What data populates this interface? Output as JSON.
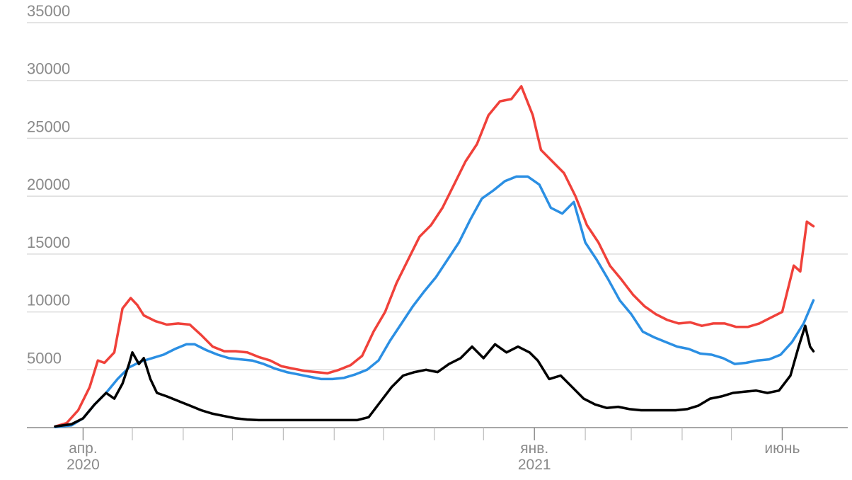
{
  "chart_data": {
    "type": "line",
    "ylim": [
      0,
      35000
    ],
    "y_ticks": [
      {
        "value": 35000,
        "label": "35000"
      },
      {
        "value": 30000,
        "label": "30000"
      },
      {
        "value": 25000,
        "label": "25000"
      },
      {
        "value": 20000,
        "label": "20000"
      },
      {
        "value": 15000,
        "label": "15000"
      },
      {
        "value": 10000,
        "label": "10000"
      },
      {
        "value": 5000,
        "label": "5000"
      }
    ],
    "x_range": [
      "2020-03-15",
      "2021-07-01"
    ],
    "x_labels": [
      {
        "date": "2020-04-01",
        "line1": "апр.",
        "line2": "2020"
      },
      {
        "date": "2021-01-01",
        "line1": "янв.",
        "line2": "2021"
      },
      {
        "date": "2021-06-01",
        "line1": "июнь",
        "line2": ""
      }
    ],
    "x_minor_ticks": [
      "2020-05-01",
      "2020-06-01",
      "2020-07-01",
      "2020-08-01",
      "2020-09-01",
      "2020-10-01",
      "2020-11-01",
      "2020-12-01",
      "2021-02-01",
      "2021-03-01",
      "2021-04-01",
      "2021-05-01"
    ],
    "grid": true,
    "series": [
      {
        "color": "#f0413a",
        "points": [
          [
            "2020-03-15",
            100
          ],
          [
            "2020-03-22",
            400
          ],
          [
            "2020-03-29",
            1500
          ],
          [
            "2020-04-05",
            3500
          ],
          [
            "2020-04-10",
            5800
          ],
          [
            "2020-04-14",
            5600
          ],
          [
            "2020-04-20",
            6500
          ],
          [
            "2020-04-25",
            10300
          ],
          [
            "2020-04-30",
            11200
          ],
          [
            "2020-05-04",
            10600
          ],
          [
            "2020-05-08",
            9700
          ],
          [
            "2020-05-15",
            9200
          ],
          [
            "2020-05-22",
            8900
          ],
          [
            "2020-05-29",
            9000
          ],
          [
            "2020-06-05",
            8900
          ],
          [
            "2020-06-12",
            8000
          ],
          [
            "2020-06-19",
            7000
          ],
          [
            "2020-06-26",
            6600
          ],
          [
            "2020-07-03",
            6600
          ],
          [
            "2020-07-10",
            6500
          ],
          [
            "2020-07-17",
            6100
          ],
          [
            "2020-07-24",
            5800
          ],
          [
            "2020-07-31",
            5300
          ],
          [
            "2020-08-07",
            5100
          ],
          [
            "2020-08-14",
            4900
          ],
          [
            "2020-08-21",
            4800
          ],
          [
            "2020-08-28",
            4700
          ],
          [
            "2020-09-04",
            5000
          ],
          [
            "2020-09-11",
            5400
          ],
          [
            "2020-09-18",
            6200
          ],
          [
            "2020-09-25",
            8300
          ],
          [
            "2020-10-02",
            10000
          ],
          [
            "2020-10-09",
            12500
          ],
          [
            "2020-10-16",
            14500
          ],
          [
            "2020-10-23",
            16500
          ],
          [
            "2020-10-30",
            17500
          ],
          [
            "2020-11-06",
            19000
          ],
          [
            "2020-11-13",
            21000
          ],
          [
            "2020-11-20",
            23000
          ],
          [
            "2020-11-27",
            24500
          ],
          [
            "2020-12-04",
            27000
          ],
          [
            "2020-12-11",
            28200
          ],
          [
            "2020-12-18",
            28400
          ],
          [
            "2020-12-24",
            29500
          ],
          [
            "2020-12-31",
            27000
          ],
          [
            "2021-01-05",
            24000
          ],
          [
            "2021-01-12",
            23000
          ],
          [
            "2021-01-19",
            22000
          ],
          [
            "2021-01-26",
            20000
          ],
          [
            "2021-02-02",
            17500
          ],
          [
            "2021-02-09",
            16000
          ],
          [
            "2021-02-16",
            14000
          ],
          [
            "2021-02-23",
            12800
          ],
          [
            "2021-03-02",
            11500
          ],
          [
            "2021-03-09",
            10500
          ],
          [
            "2021-03-16",
            9800
          ],
          [
            "2021-03-23",
            9300
          ],
          [
            "2021-03-30",
            9000
          ],
          [
            "2021-04-06",
            9100
          ],
          [
            "2021-04-13",
            8800
          ],
          [
            "2021-04-20",
            9000
          ],
          [
            "2021-04-27",
            9000
          ],
          [
            "2021-05-04",
            8700
          ],
          [
            "2021-05-11",
            8700
          ],
          [
            "2021-05-18",
            9000
          ],
          [
            "2021-05-25",
            9500
          ],
          [
            "2021-06-01",
            10000
          ],
          [
            "2021-06-08",
            14000
          ],
          [
            "2021-06-12",
            13500
          ],
          [
            "2021-06-16",
            17800
          ],
          [
            "2021-06-20",
            17400
          ]
        ]
      },
      {
        "color": "#2b8fe3",
        "points": [
          [
            "2020-03-15",
            50
          ],
          [
            "2020-03-25",
            200
          ],
          [
            "2020-04-01",
            800
          ],
          [
            "2020-04-08",
            2000
          ],
          [
            "2020-04-15",
            3000
          ],
          [
            "2020-04-22",
            4200
          ],
          [
            "2020-04-29",
            5200
          ],
          [
            "2020-05-06",
            5700
          ],
          [
            "2020-05-13",
            6000
          ],
          [
            "2020-05-20",
            6300
          ],
          [
            "2020-05-27",
            6800
          ],
          [
            "2020-06-03",
            7200
          ],
          [
            "2020-06-08",
            7200
          ],
          [
            "2020-06-15",
            6700
          ],
          [
            "2020-06-22",
            6300
          ],
          [
            "2020-06-29",
            6000
          ],
          [
            "2020-07-06",
            5900
          ],
          [
            "2020-07-13",
            5800
          ],
          [
            "2020-07-20",
            5500
          ],
          [
            "2020-07-27",
            5100
          ],
          [
            "2020-08-03",
            4800
          ],
          [
            "2020-08-10",
            4600
          ],
          [
            "2020-08-17",
            4400
          ],
          [
            "2020-08-24",
            4200
          ],
          [
            "2020-08-31",
            4200
          ],
          [
            "2020-09-07",
            4300
          ],
          [
            "2020-09-14",
            4600
          ],
          [
            "2020-09-21",
            5000
          ],
          [
            "2020-09-28",
            5800
          ],
          [
            "2020-10-05",
            7500
          ],
          [
            "2020-10-12",
            9000
          ],
          [
            "2020-10-19",
            10500
          ],
          [
            "2020-10-26",
            11800
          ],
          [
            "2020-11-02",
            13000
          ],
          [
            "2020-11-09",
            14500
          ],
          [
            "2020-11-16",
            16000
          ],
          [
            "2020-11-23",
            18000
          ],
          [
            "2020-11-30",
            19800
          ],
          [
            "2020-12-07",
            20500
          ],
          [
            "2020-12-14",
            21300
          ],
          [
            "2020-12-21",
            21700
          ],
          [
            "2020-12-28",
            21700
          ],
          [
            "2021-01-04",
            21000
          ],
          [
            "2021-01-11",
            19000
          ],
          [
            "2021-01-18",
            18500
          ],
          [
            "2021-01-25",
            19500
          ],
          [
            "2021-02-01",
            16000
          ],
          [
            "2021-02-08",
            14500
          ],
          [
            "2021-02-15",
            12800
          ],
          [
            "2021-02-22",
            11000
          ],
          [
            "2021-03-01",
            9800
          ],
          [
            "2021-03-08",
            8300
          ],
          [
            "2021-03-15",
            7800
          ],
          [
            "2021-03-22",
            7400
          ],
          [
            "2021-03-29",
            7000
          ],
          [
            "2021-04-05",
            6800
          ],
          [
            "2021-04-12",
            6400
          ],
          [
            "2021-04-19",
            6300
          ],
          [
            "2021-04-26",
            6000
          ],
          [
            "2021-05-03",
            5500
          ],
          [
            "2021-05-10",
            5600
          ],
          [
            "2021-05-17",
            5800
          ],
          [
            "2021-05-24",
            5900
          ],
          [
            "2021-05-31",
            6300
          ],
          [
            "2021-06-07",
            7400
          ],
          [
            "2021-06-14",
            9000
          ],
          [
            "2021-06-20",
            11000
          ]
        ]
      },
      {
        "color": "#000000",
        "points": [
          [
            "2020-03-15",
            100
          ],
          [
            "2020-03-25",
            300
          ],
          [
            "2020-04-01",
            800
          ],
          [
            "2020-04-08",
            2000
          ],
          [
            "2020-04-15",
            3000
          ],
          [
            "2020-04-20",
            2500
          ],
          [
            "2020-04-25",
            3800
          ],
          [
            "2020-04-29",
            5500
          ],
          [
            "2020-05-01",
            6500
          ],
          [
            "2020-05-05",
            5500
          ],
          [
            "2020-05-08",
            6000
          ],
          [
            "2020-05-12",
            4200
          ],
          [
            "2020-05-16",
            3000
          ],
          [
            "2020-05-22",
            2700
          ],
          [
            "2020-05-29",
            2300
          ],
          [
            "2020-06-05",
            1900
          ],
          [
            "2020-06-12",
            1500
          ],
          [
            "2020-06-19",
            1200
          ],
          [
            "2020-06-26",
            1000
          ],
          [
            "2020-07-03",
            800
          ],
          [
            "2020-07-10",
            700
          ],
          [
            "2020-07-17",
            650
          ],
          [
            "2020-07-24",
            650
          ],
          [
            "2020-08-07",
            650
          ],
          [
            "2020-08-21",
            650
          ],
          [
            "2020-09-04",
            650
          ],
          [
            "2020-09-15",
            650
          ],
          [
            "2020-09-22",
            900
          ],
          [
            "2020-09-29",
            2200
          ],
          [
            "2020-10-06",
            3500
          ],
          [
            "2020-10-13",
            4500
          ],
          [
            "2020-10-20",
            4800
          ],
          [
            "2020-10-27",
            5000
          ],
          [
            "2020-11-03",
            4800
          ],
          [
            "2020-11-10",
            5500
          ],
          [
            "2020-11-17",
            6000
          ],
          [
            "2020-11-24",
            7000
          ],
          [
            "2020-12-01",
            6000
          ],
          [
            "2020-12-08",
            7200
          ],
          [
            "2020-12-15",
            6500
          ],
          [
            "2020-12-22",
            7000
          ],
          [
            "2020-12-29",
            6500
          ],
          [
            "2021-01-03",
            5800
          ],
          [
            "2021-01-10",
            4200
          ],
          [
            "2021-01-17",
            4500
          ],
          [
            "2021-01-24",
            3500
          ],
          [
            "2021-01-31",
            2500
          ],
          [
            "2021-02-07",
            2000
          ],
          [
            "2021-02-14",
            1700
          ],
          [
            "2021-02-21",
            1800
          ],
          [
            "2021-02-28",
            1600
          ],
          [
            "2021-03-07",
            1500
          ],
          [
            "2021-03-14",
            1500
          ],
          [
            "2021-03-21",
            1500
          ],
          [
            "2021-03-28",
            1500
          ],
          [
            "2021-04-04",
            1600
          ],
          [
            "2021-04-11",
            1900
          ],
          [
            "2021-04-18",
            2500
          ],
          [
            "2021-04-25",
            2700
          ],
          [
            "2021-05-02",
            3000
          ],
          [
            "2021-05-09",
            3100
          ],
          [
            "2021-05-16",
            3200
          ],
          [
            "2021-05-23",
            3000
          ],
          [
            "2021-05-30",
            3200
          ],
          [
            "2021-06-06",
            4500
          ],
          [
            "2021-06-11",
            7000
          ],
          [
            "2021-06-15",
            8800
          ],
          [
            "2021-06-18",
            7000
          ],
          [
            "2021-06-20",
            6600
          ]
        ]
      }
    ]
  }
}
